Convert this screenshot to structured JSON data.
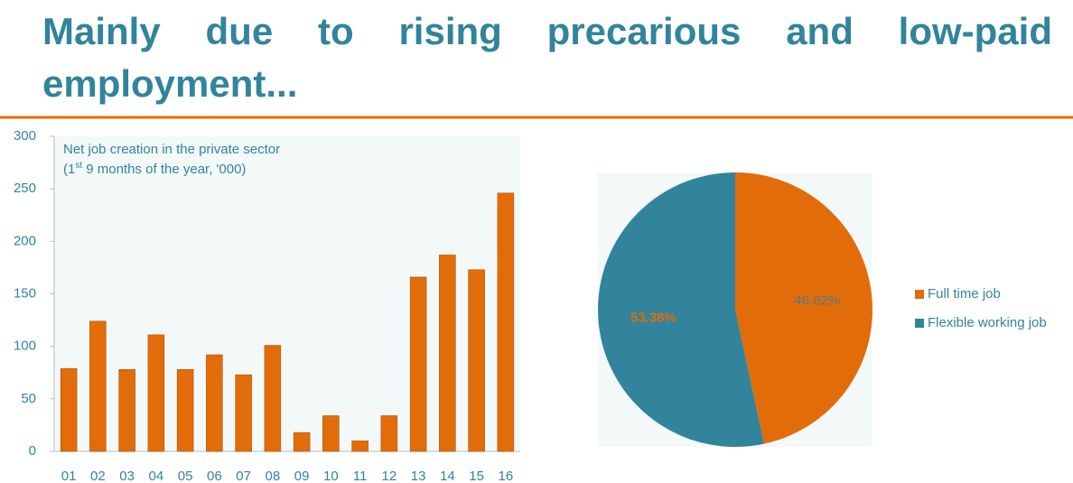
{
  "title": "Mainly due to rising precarious and low-paid employment...",
  "chart_data": [
    {
      "type": "bar",
      "annotation": "Net job creation in the private sector",
      "subtitle_parts": [
        "(1",
        "st",
        " 9 months of  the year, '000)"
      ],
      "categories": [
        "01",
        "02",
        "03",
        "04",
        "05",
        "06",
        "07",
        "08",
        "09",
        "10",
        "11",
        "12",
        "13",
        "14",
        "15",
        "16"
      ],
      "values": [
        79,
        124,
        78,
        111,
        78,
        92,
        73,
        101,
        18,
        34,
        10,
        34,
        166,
        187,
        173,
        246
      ],
      "color": "#e36c0a",
      "ylim": [
        0,
        300
      ],
      "yticks": [
        0,
        50,
        100,
        150,
        200,
        250,
        300
      ]
    },
    {
      "type": "pie",
      "categories": [
        "Full time job",
        "Flexible working job"
      ],
      "values": [
        46.62,
        53.38
      ],
      "value_labels": [
        "46.62%",
        "53.38%"
      ],
      "colors": [
        "#e36c0a",
        "#31849b"
      ],
      "legend": "right"
    }
  ]
}
